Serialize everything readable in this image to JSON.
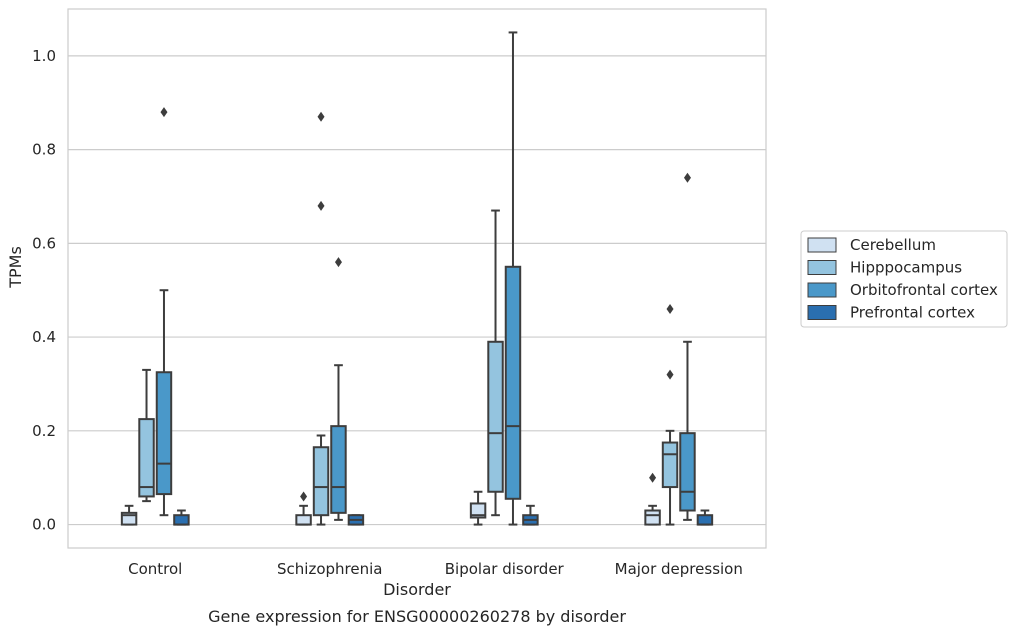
{
  "chart_data": {
    "type": "box",
    "xlabel": "Disorder",
    "ylabel": "TPMs",
    "caption": "Gene expression for ENSG00000260278 by disorder",
    "ylim": [
      -0.05,
      1.1
    ],
    "yticks": [
      "0.0",
      "0.2",
      "0.4",
      "0.6",
      "0.8",
      "1.0"
    ],
    "ytick_values": [
      0.0,
      0.2,
      0.4,
      0.6,
      0.8,
      1.0
    ],
    "grid": true,
    "legend_position": "right",
    "categories": [
      "Control",
      "Schizophrenia",
      "Bipolar disorder",
      "Major depression"
    ],
    "series": [
      {
        "name": "Cerebellum",
        "color": "#d0e1f2",
        "boxes": [
          {
            "whisker_low": 0.0,
            "q1": 0.0,
            "median": 0.02,
            "q3": 0.025,
            "whisker_high": 0.04,
            "outliers": []
          },
          {
            "whisker_low": 0.0,
            "q1": 0.0,
            "median": 0.0,
            "q3": 0.02,
            "whisker_high": 0.04,
            "outliers": [
              0.06
            ]
          },
          {
            "whisker_low": 0.0,
            "q1": 0.015,
            "median": 0.02,
            "q3": 0.045,
            "whisker_high": 0.07,
            "outliers": []
          },
          {
            "whisker_low": 0.0,
            "q1": 0.0,
            "median": 0.02,
            "q3": 0.03,
            "whisker_high": 0.04,
            "outliers": [
              0.1
            ]
          }
        ]
      },
      {
        "name": "Hipppocampus",
        "color": "#94c4df",
        "boxes": [
          {
            "whisker_low": 0.05,
            "q1": 0.06,
            "median": 0.08,
            "q3": 0.225,
            "whisker_high": 0.33,
            "outliers": []
          },
          {
            "whisker_low": 0.0,
            "q1": 0.02,
            "median": 0.08,
            "q3": 0.165,
            "whisker_high": 0.19,
            "outliers": [
              0.68,
              0.87
            ]
          },
          {
            "whisker_low": 0.02,
            "q1": 0.07,
            "median": 0.195,
            "q3": 0.39,
            "whisker_high": 0.67,
            "outliers": []
          },
          {
            "whisker_low": 0.0,
            "q1": 0.08,
            "median": 0.15,
            "q3": 0.175,
            "whisker_high": 0.2,
            "outliers": [
              0.32,
              0.46
            ]
          }
        ]
      },
      {
        "name": "Orbitofrontal cortex",
        "color": "#4a98c9",
        "boxes": [
          {
            "whisker_low": 0.02,
            "q1": 0.065,
            "median": 0.13,
            "q3": 0.325,
            "whisker_high": 0.5,
            "outliers": [
              0.88
            ]
          },
          {
            "whisker_low": 0.01,
            "q1": 0.025,
            "median": 0.08,
            "q3": 0.21,
            "whisker_high": 0.34,
            "outliers": [
              0.56
            ]
          },
          {
            "whisker_low": 0.0,
            "q1": 0.055,
            "median": 0.21,
            "q3": 0.55,
            "whisker_high": 1.05,
            "outliers": []
          },
          {
            "whisker_low": 0.01,
            "q1": 0.03,
            "median": 0.07,
            "q3": 0.195,
            "whisker_high": 0.39,
            "outliers": [
              0.74
            ]
          }
        ]
      },
      {
        "name": "Prefrontal cortex",
        "color": "#2a6fb0",
        "boxes": [
          {
            "whisker_low": 0.0,
            "q1": 0.0,
            "median": 0.0,
            "q3": 0.02,
            "whisker_high": 0.03,
            "outliers": []
          },
          {
            "whisker_low": 0.0,
            "q1": 0.0,
            "median": 0.01,
            "q3": 0.02,
            "whisker_high": 0.02,
            "outliers": []
          },
          {
            "whisker_low": 0.0,
            "q1": 0.0,
            "median": 0.01,
            "q3": 0.02,
            "whisker_high": 0.04,
            "outliers": []
          },
          {
            "whisker_low": 0.0,
            "q1": 0.0,
            "median": 0.0,
            "q3": 0.02,
            "whisker_high": 0.03,
            "outliers": []
          }
        ]
      }
    ]
  }
}
